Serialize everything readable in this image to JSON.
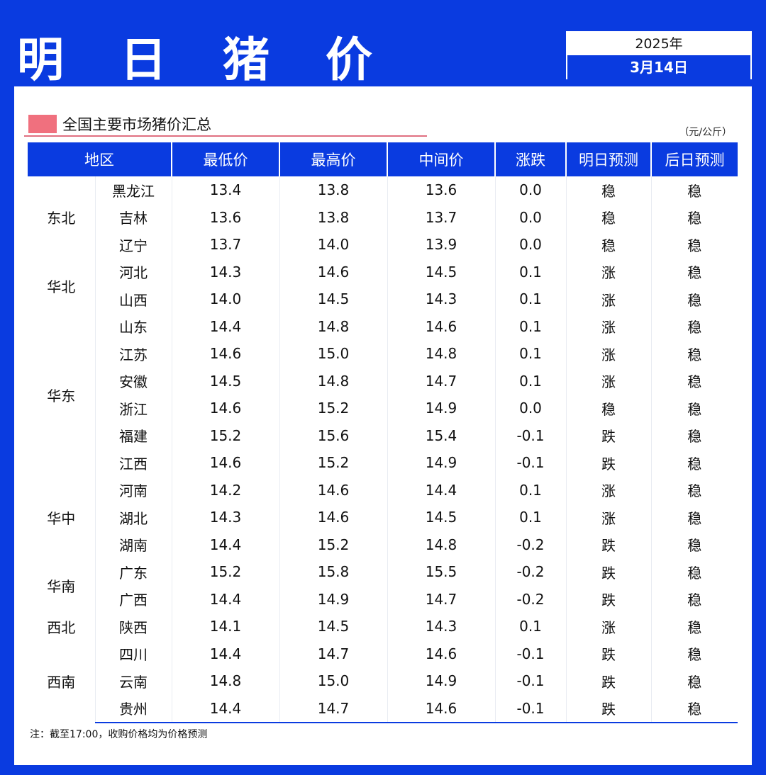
{
  "header": {
    "title": "明 日 猪 价",
    "year": "2025年",
    "date": "3月14日"
  },
  "section": {
    "title": "全国主要市场猪价汇总",
    "unit": "（元/公斤）"
  },
  "colors": {
    "brand": "#0a3be0",
    "up": "#d8304a",
    "down": "#17a84e",
    "marker": "#f0707e"
  },
  "table": {
    "columns": [
      "地区",
      "最低价",
      "最高价",
      "中间价",
      "涨跌",
      "明日预测",
      "后日预测"
    ],
    "groups": [
      {
        "region": "东北",
        "rows": [
          {
            "province": "黑龙江",
            "low": "13.4",
            "high": "13.8",
            "mid": "13.6",
            "change": "0.0",
            "tomorrow": "稳",
            "after": "稳"
          },
          {
            "province": "吉林",
            "low": "13.6",
            "high": "13.8",
            "mid": "13.7",
            "change": "0.0",
            "tomorrow": "稳",
            "after": "稳"
          },
          {
            "province": "辽宁",
            "low": "13.7",
            "high": "14.0",
            "mid": "13.9",
            "change": "0.0",
            "tomorrow": "稳",
            "after": "稳"
          }
        ]
      },
      {
        "region": "华北",
        "rows": [
          {
            "province": "河北",
            "low": "14.3",
            "high": "14.6",
            "mid": "14.5",
            "change": "0.1",
            "tomorrow": "涨",
            "after": "稳"
          },
          {
            "province": "山西",
            "low": "14.0",
            "high": "14.5",
            "mid": "14.3",
            "change": "0.1",
            "tomorrow": "涨",
            "after": "稳"
          }
        ]
      },
      {
        "region": "华东",
        "rows": [
          {
            "province": "山东",
            "low": "14.4",
            "high": "14.8",
            "mid": "14.6",
            "change": "0.1",
            "tomorrow": "涨",
            "after": "稳"
          },
          {
            "province": "江苏",
            "low": "14.6",
            "high": "15.0",
            "mid": "14.8",
            "change": "0.1",
            "tomorrow": "涨",
            "after": "稳"
          },
          {
            "province": "安徽",
            "low": "14.5",
            "high": "14.8",
            "mid": "14.7",
            "change": "0.1",
            "tomorrow": "涨",
            "after": "稳"
          },
          {
            "province": "浙江",
            "low": "14.6",
            "high": "15.2",
            "mid": "14.9",
            "change": "0.0",
            "tomorrow": "稳",
            "after": "稳"
          },
          {
            "province": "福建",
            "low": "15.2",
            "high": "15.6",
            "mid": "15.4",
            "change": "-0.1",
            "tomorrow": "跌",
            "after": "稳"
          },
          {
            "province": "江西",
            "low": "14.6",
            "high": "15.2",
            "mid": "14.9",
            "change": "-0.1",
            "tomorrow": "跌",
            "after": "稳"
          }
        ]
      },
      {
        "region": "华中",
        "rows": [
          {
            "province": "河南",
            "low": "14.2",
            "high": "14.6",
            "mid": "14.4",
            "change": "0.1",
            "tomorrow": "涨",
            "after": "稳"
          },
          {
            "province": "湖北",
            "low": "14.3",
            "high": "14.6",
            "mid": "14.5",
            "change": "0.1",
            "tomorrow": "涨",
            "after": "稳"
          },
          {
            "province": "湖南",
            "low": "14.4",
            "high": "15.2",
            "mid": "14.8",
            "change": "-0.2",
            "tomorrow": "跌",
            "after": "稳"
          }
        ]
      },
      {
        "region": "华南",
        "rows": [
          {
            "province": "广东",
            "low": "15.2",
            "high": "15.8",
            "mid": "15.5",
            "change": "-0.2",
            "tomorrow": "跌",
            "after": "稳"
          },
          {
            "province": "广西",
            "low": "14.4",
            "high": "14.9",
            "mid": "14.7",
            "change": "-0.2",
            "tomorrow": "跌",
            "after": "稳"
          }
        ]
      },
      {
        "region": "西北",
        "rows": [
          {
            "province": "陕西",
            "low": "14.1",
            "high": "14.5",
            "mid": "14.3",
            "change": "0.1",
            "tomorrow": "涨",
            "after": "稳"
          }
        ]
      },
      {
        "region": "西南",
        "rows": [
          {
            "province": "四川",
            "low": "14.4",
            "high": "14.7",
            "mid": "14.6",
            "change": "-0.1",
            "tomorrow": "跌",
            "after": "稳"
          },
          {
            "province": "云南",
            "low": "14.8",
            "high": "15.0",
            "mid": "14.9",
            "change": "-0.1",
            "tomorrow": "跌",
            "after": "稳"
          },
          {
            "province": "贵州",
            "low": "14.4",
            "high": "14.7",
            "mid": "14.6",
            "change": "-0.1",
            "tomorrow": "跌",
            "after": "稳"
          }
        ]
      }
    ]
  },
  "footnote": "注：截至17:00，收购价格均为价格预测"
}
